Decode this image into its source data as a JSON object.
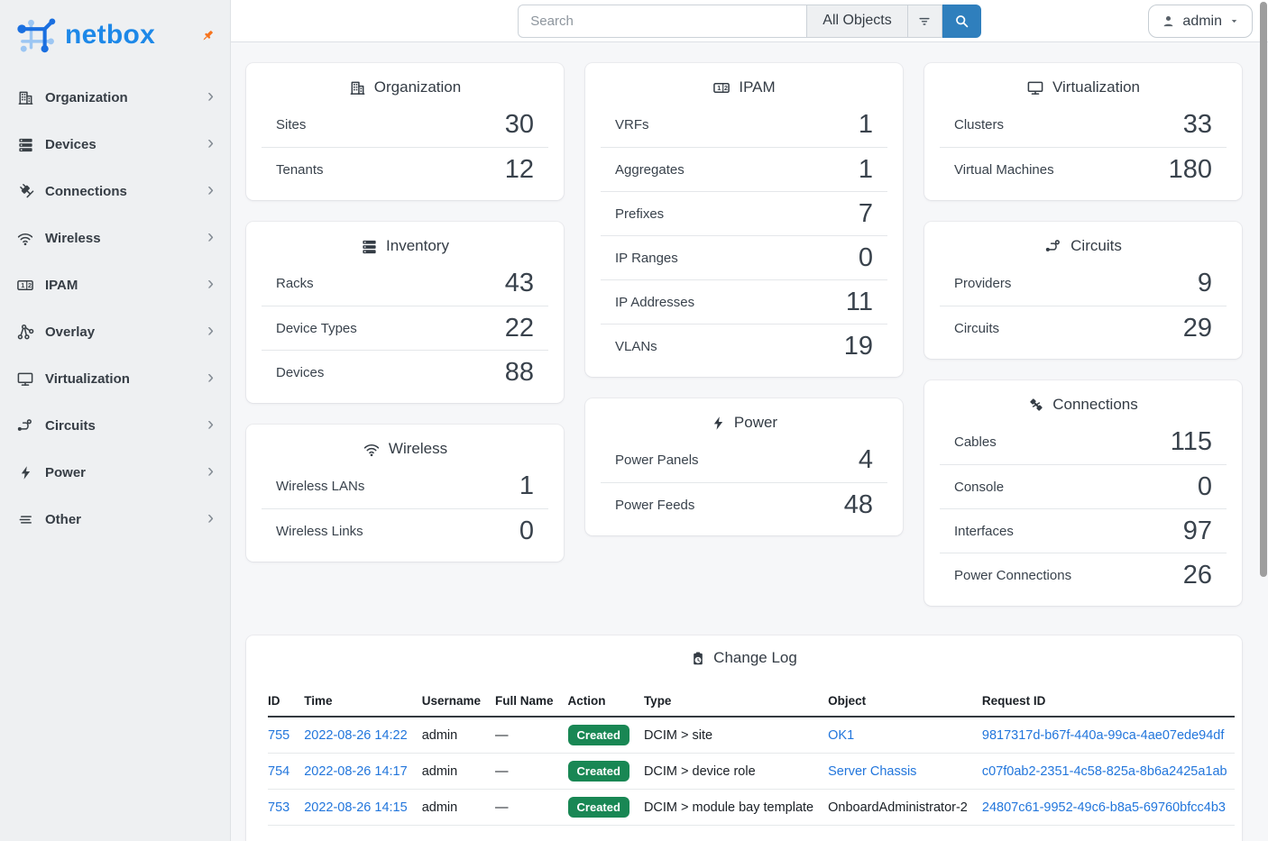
{
  "brand": {
    "logo_text": "netbox"
  },
  "topbar": {
    "search_placeholder": "Search",
    "object_type": "All Objects",
    "user": "admin"
  },
  "sidebar": {
    "items": [
      {
        "label": "Organization",
        "icon": "building-icon"
      },
      {
        "label": "Devices",
        "icon": "server-icon"
      },
      {
        "label": "Connections",
        "icon": "plug-icon"
      },
      {
        "label": "Wireless",
        "icon": "wifi-icon"
      },
      {
        "label": "IPAM",
        "icon": "counter-icon"
      },
      {
        "label": "Overlay",
        "icon": "graph-icon"
      },
      {
        "label": "Virtualization",
        "icon": "monitor-icon"
      },
      {
        "label": "Circuits",
        "icon": "transit-icon"
      },
      {
        "label": "Power",
        "icon": "lightning-icon"
      },
      {
        "label": "Other",
        "icon": "menu-icon"
      }
    ]
  },
  "dashboard": {
    "columns": [
      [
        {
          "title": "Organization",
          "icon": "building-icon",
          "rows": [
            {
              "label": "Sites",
              "value": "30"
            },
            {
              "label": "Tenants",
              "value": "12"
            }
          ]
        },
        {
          "title": "Inventory",
          "icon": "server-icon",
          "rows": [
            {
              "label": "Racks",
              "value": "43"
            },
            {
              "label": "Device Types",
              "value": "22"
            },
            {
              "label": "Devices",
              "value": "88"
            }
          ]
        },
        {
          "title": "Wireless",
          "icon": "wifi-icon",
          "rows": [
            {
              "label": "Wireless LANs",
              "value": "1"
            },
            {
              "label": "Wireless Links",
              "value": "0"
            }
          ]
        }
      ],
      [
        {
          "title": "IPAM",
          "icon": "counter-icon",
          "rows": [
            {
              "label": "VRFs",
              "value": "1"
            },
            {
              "label": "Aggregates",
              "value": "1"
            },
            {
              "label": "Prefixes",
              "value": "7"
            },
            {
              "label": "IP Ranges",
              "value": "0"
            },
            {
              "label": "IP Addresses",
              "value": "11"
            },
            {
              "label": "VLANs",
              "value": "19"
            }
          ]
        },
        {
          "title": "Power",
          "icon": "lightning-icon",
          "rows": [
            {
              "label": "Power Panels",
              "value": "4"
            },
            {
              "label": "Power Feeds",
              "value": "48"
            }
          ]
        }
      ],
      [
        {
          "title": "Virtualization",
          "icon": "monitor-icon",
          "rows": [
            {
              "label": "Clusters",
              "value": "33"
            },
            {
              "label": "Virtual Machines",
              "value": "180"
            }
          ]
        },
        {
          "title": "Circuits",
          "icon": "transit-icon",
          "rows": [
            {
              "label": "Providers",
              "value": "9"
            },
            {
              "label": "Circuits",
              "value": "29"
            }
          ]
        },
        {
          "title": "Connections",
          "icon": "cable-icon",
          "rows": [
            {
              "label": "Cables",
              "value": "115"
            },
            {
              "label": "Console",
              "value": "0"
            },
            {
              "label": "Interfaces",
              "value": "97"
            },
            {
              "label": "Power Connections",
              "value": "26"
            }
          ]
        }
      ]
    ]
  },
  "changelog": {
    "title": "Change Log",
    "icon": "clipboard-clock-icon",
    "columns": [
      "ID",
      "Time",
      "Username",
      "Full Name",
      "Action",
      "Type",
      "Object",
      "Request ID"
    ],
    "rows": [
      {
        "id": "755",
        "time": "2022-08-26 14:22",
        "username": "admin",
        "full_name": "—",
        "action": "Created",
        "type": "DCIM > site",
        "object": "OK1",
        "object_link": true,
        "request_id": "9817317d-b67f-440a-99ca-4ae07ede94df"
      },
      {
        "id": "754",
        "time": "2022-08-26 14:17",
        "username": "admin",
        "full_name": "—",
        "action": "Created",
        "type": "DCIM > device role",
        "object": "Server Chassis",
        "object_link": true,
        "request_id": "c07f0ab2-2351-4c58-825a-8b6a2425a1ab"
      },
      {
        "id": "753",
        "time": "2022-08-26 14:15",
        "username": "admin",
        "full_name": "—",
        "action": "Created",
        "type": "DCIM > module bay template",
        "object": "OnboardAdministrator-2",
        "object_link": false,
        "request_id": "24807c61-9952-49c6-b8a5-69760bfcc4b3"
      }
    ]
  },
  "colors": {
    "accent_blue": "#2f7fbd",
    "link_blue": "#2276dc",
    "badge_green": "#198754",
    "logo_blue": "#1d88e8",
    "pin_orange": "#f6731d",
    "sidebar_bg": "#eef0f2",
    "content_bg": "#f6f7f9"
  }
}
